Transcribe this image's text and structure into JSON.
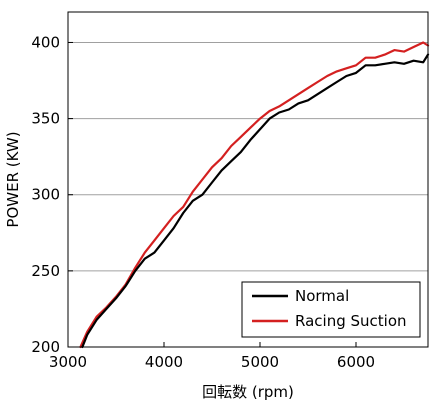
{
  "chart_data": {
    "type": "line",
    "title": "",
    "xlabel": "回転数 (rpm)",
    "ylabel": "POWER (KW)",
    "xlim": [
      3000,
      6750
    ],
    "ylim": [
      200,
      420
    ],
    "xticks": [
      3000,
      4000,
      5000,
      6000
    ],
    "yticks": [
      200,
      250,
      300,
      350,
      400
    ],
    "xtick_labels": [
      "3000",
      "4000",
      "5000",
      "6000"
    ],
    "ytick_labels": [
      "200",
      "250",
      "300",
      "350",
      "400"
    ],
    "grid": "horizontal",
    "legend_position": "bottom-right",
    "series": [
      {
        "name": "Normal",
        "color": "#000000",
        "x": [
          3150,
          3200,
          3300,
          3400,
          3500,
          3600,
          3700,
          3800,
          3900,
          4000,
          4100,
          4200,
          4300,
          4400,
          4500,
          4600,
          4700,
          4800,
          4900,
          5000,
          5100,
          5200,
          5300,
          5400,
          5500,
          5600,
          5700,
          5800,
          5900,
          6000,
          6100,
          6200,
          6300,
          6400,
          6500,
          6600,
          6700,
          6750
        ],
        "y": [
          200,
          208,
          218,
          225,
          232,
          240,
          250,
          258,
          262,
          270,
          278,
          288,
          296,
          300,
          308,
          316,
          322,
          328,
          336,
          343,
          350,
          354,
          356,
          360,
          362,
          366,
          370,
          374,
          378,
          380,
          385,
          385,
          386,
          387,
          386,
          388,
          387,
          392
        ]
      },
      {
        "name": "Racing Suction",
        "color": "#d42020",
        "x": [
          3130,
          3200,
          3300,
          3400,
          3500,
          3600,
          3700,
          3800,
          3900,
          4000,
          4100,
          4200,
          4300,
          4400,
          4500,
          4600,
          4700,
          4800,
          4900,
          5000,
          5100,
          5200,
          5300,
          5400,
          5500,
          5600,
          5700,
          5800,
          5900,
          6000,
          6100,
          6200,
          6300,
          6400,
          6500,
          6600,
          6700,
          6750
        ],
        "y": [
          200,
          210,
          220,
          226,
          233,
          241,
          252,
          262,
          270,
          278,
          286,
          292,
          302,
          310,
          318,
          324,
          332,
          338,
          344,
          350,
          355,
          358,
          362,
          366,
          370,
          374,
          378,
          381,
          383,
          385,
          390,
          390,
          392,
          395,
          394,
          397,
          400,
          398
        ]
      }
    ]
  }
}
